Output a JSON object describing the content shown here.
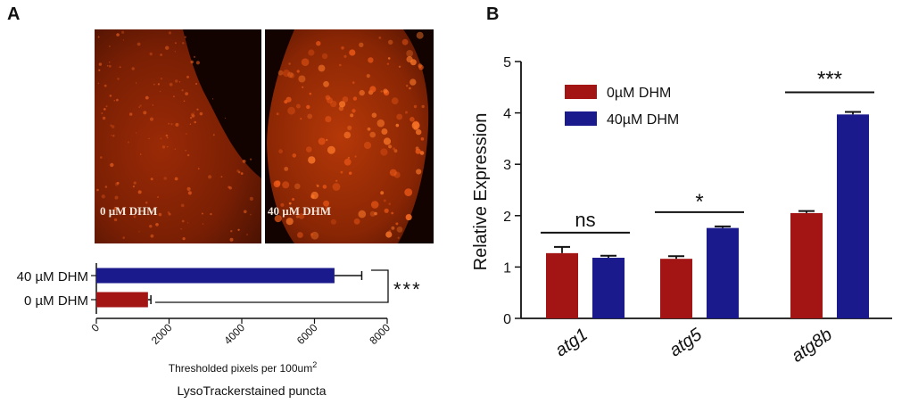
{
  "panel_a": {
    "letter": "A",
    "micrographs": [
      {
        "label": "0 µM DHM"
      },
      {
        "label": "40 µM DHM"
      }
    ],
    "chart_data": {
      "type": "bar",
      "orientation": "horizontal",
      "categories": [
        "40 µM DHM",
        "0 µM DHM"
      ],
      "values": [
        6550,
        1420
      ],
      "errors": [
        750,
        80
      ],
      "colors": [
        "#1a1a8c",
        "#a31515"
      ],
      "xlim": [
        0,
        8000
      ],
      "xticks": [
        0,
        2000,
        4000,
        6000,
        8000
      ],
      "xlabel_prefix": "Thresholded pixels per 100um",
      "xlabel_sup": "2",
      "subtitle": "LysoTrackerstained puncta",
      "significance": "***",
      "grid": false
    }
  },
  "panel_b": {
    "letter": "B",
    "chart_data": {
      "type": "bar",
      "categories": [
        "atg1",
        "atg5",
        "atg8b"
      ],
      "series": [
        {
          "name": "0µM DHM",
          "color": "#a31515",
          "values": [
            1.27,
            1.16,
            2.05
          ],
          "errors": [
            0.12,
            0.05,
            0.04
          ]
        },
        {
          "name": "40µM DHM",
          "color": "#1a1a8c",
          "values": [
            1.18,
            1.76,
            3.97
          ],
          "errors": [
            0.04,
            0.03,
            0.05
          ]
        }
      ],
      "ylabel": "Relative Expression",
      "ylim": [
        0,
        5
      ],
      "yticks": [
        0,
        1,
        2,
        3,
        4,
        5
      ],
      "significance": [
        "ns",
        "*",
        "***"
      ],
      "legend_position": "top-left",
      "grid": false
    }
  }
}
